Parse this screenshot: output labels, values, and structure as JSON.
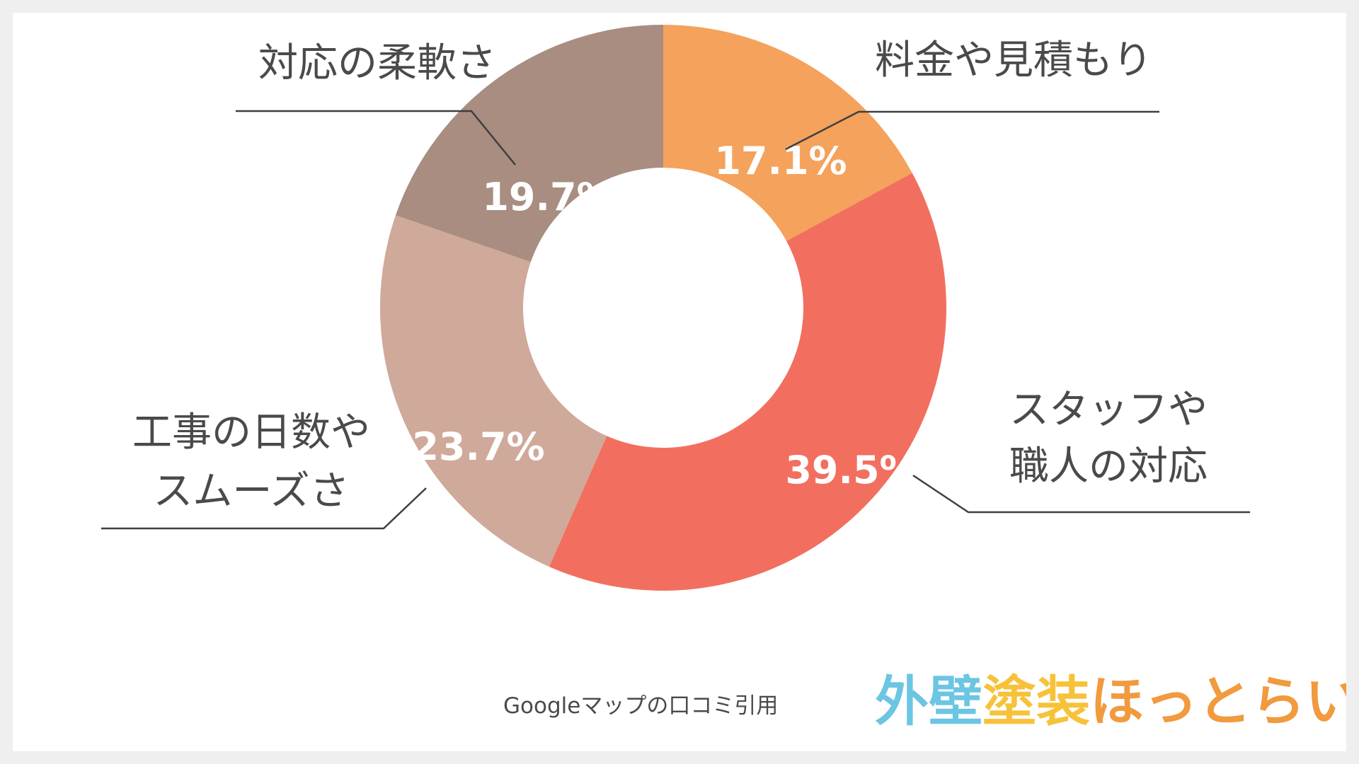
{
  "chart_data": {
    "type": "pie",
    "variant": "donut",
    "slices": [
      {
        "label": "料金や見積もり",
        "value": 17.1,
        "value_text": "17.1%",
        "color": "#f4a25c"
      },
      {
        "label": "スタッフや\n職人の対応",
        "value": 39.5,
        "value_text": "39.5%",
        "color": "#f26f5f"
      },
      {
        "label": "工事の日数や\nスムーズさ",
        "value": 23.7,
        "value_text": "23.7%",
        "color": "#cfa99a"
      },
      {
        "label": "対応の柔軟さ",
        "value": 19.7,
        "value_text": "19.7%",
        "color": "#a88d80"
      }
    ],
    "start": "top",
    "direction": "clockwise",
    "legend": "none"
  },
  "source": "Googleマップの口コミ引用",
  "logo": {
    "parts": [
      {
        "text": "外壁",
        "color": "#6cc5e3"
      },
      {
        "text": "塗装",
        "color": "#f7c23a"
      },
      {
        "text": "ほっとらいん",
        "color": "#f19a3e"
      }
    ]
  }
}
